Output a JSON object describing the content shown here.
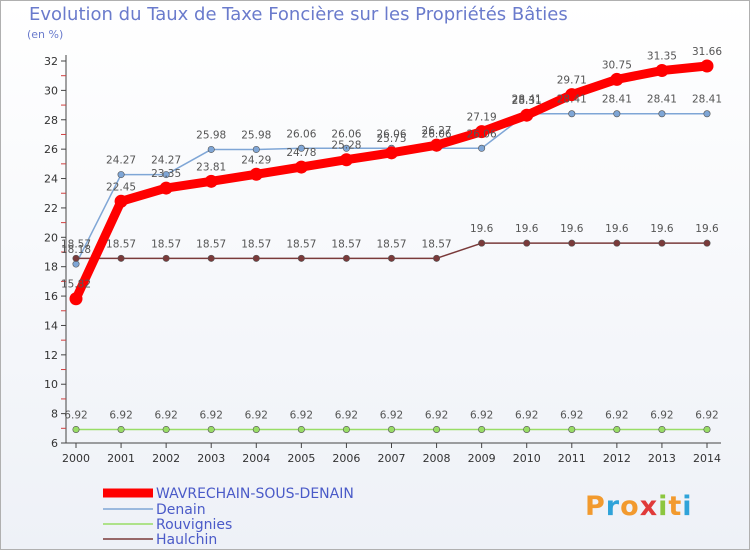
{
  "chart_data": {
    "type": "line",
    "title": "Evolution du Taux de Taxe Foncière sur les Propriétés Bâties",
    "ylabel": "(en %)",
    "xlabel": "",
    "x": [
      "2000",
      "2001",
      "2002",
      "2003",
      "2004",
      "2005",
      "2006",
      "2007",
      "2008",
      "2009",
      "2010",
      "2011",
      "2012",
      "2013",
      "2014"
    ],
    "ylim": [
      6,
      32
    ],
    "yticks": [
      6,
      8,
      10,
      12,
      14,
      16,
      18,
      20,
      22,
      24,
      26,
      28,
      30,
      32
    ],
    "grid": false,
    "series": [
      {
        "name": "WAVRECHAIN-SOUS-DENAIN",
        "color": "#ff0000",
        "values": [
          15.82,
          22.45,
          23.35,
          23.81,
          24.29,
          24.78,
          25.28,
          25.75,
          26.27,
          27.19,
          28.31,
          29.71,
          30.75,
          31.35,
          31.66
        ],
        "labels": [
          "15.82",
          "22.45",
          "23.35",
          "23.81",
          "24.29",
          "24.78",
          "25.28",
          "25.75",
          "26.27",
          "27.19",
          "28.31",
          "29.71",
          "30.75",
          "31.35",
          "31.66"
        ]
      },
      {
        "name": "Denain",
        "color": "#7fa6d6",
        "values": [
          18.18,
          24.27,
          24.27,
          25.98,
          25.98,
          26.06,
          26.06,
          26.06,
          26.06,
          26.06,
          28.41,
          28.41,
          28.41,
          28.41,
          28.41
        ],
        "labels": [
          "18.18",
          "24.27",
          "24.27",
          "25.98",
          "25.98",
          "26.06",
          "26.06",
          "26.06",
          "26.06",
          "26.06",
          "28.41",
          "28.41",
          "28.41",
          "28.41",
          "28.41"
        ]
      },
      {
        "name": "Rouvignies",
        "color": "#99dd66",
        "values": [
          6.92,
          6.92,
          6.92,
          6.92,
          6.92,
          6.92,
          6.92,
          6.92,
          6.92,
          6.92,
          6.92,
          6.92,
          6.92,
          6.92,
          6.92
        ],
        "labels": [
          "6.92",
          "6.92",
          "6.92",
          "6.92",
          "6.92",
          "6.92",
          "6.92",
          "6.92",
          "6.92",
          "6.92",
          "6.92",
          "6.92",
          "6.92",
          "6.92",
          "6.92"
        ]
      },
      {
        "name": "Haulchin",
        "color": "#7a3a3a",
        "values": [
          18.57,
          18.57,
          18.57,
          18.57,
          18.57,
          18.57,
          18.57,
          18.57,
          18.57,
          19.6,
          19.6,
          19.6,
          19.6,
          19.6,
          19.6
        ],
        "labels": [
          "18.57",
          "18.57",
          "18.57",
          "18.57",
          "18.57",
          "18.57",
          "18.57",
          "18.57",
          "18.57",
          "19.6",
          "19.6",
          "19.6",
          "19.6",
          "19.6",
          "19.6"
        ]
      }
    ]
  },
  "logo": {
    "letters": [
      "P",
      "r",
      "o",
      "x",
      "i",
      "t",
      "i"
    ],
    "colors": [
      "#f29a2e",
      "#2fa3d9",
      "#f29a2e",
      "#e03a3a",
      "#8cc63f",
      "#f29a2e",
      "#2fa3d9"
    ]
  }
}
